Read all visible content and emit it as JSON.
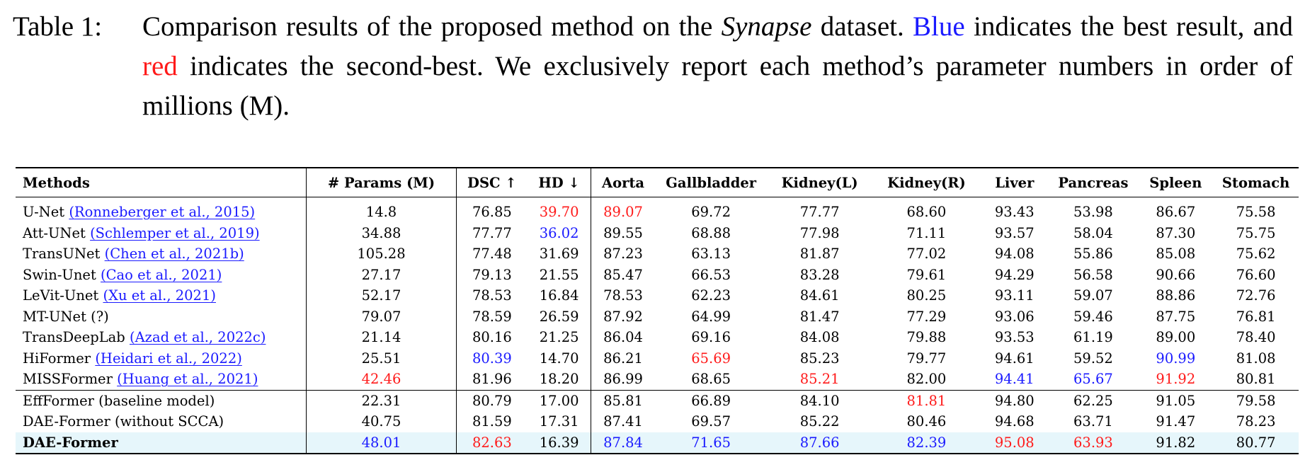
{
  "caption": {
    "label": "Table 1:",
    "part1": "Comparison results of the proposed method on the ",
    "dataset": "Synapse",
    "part2": " dataset. ",
    "blue_word": "Blue",
    "part3": " indicates the best result, and ",
    "red_word": "red",
    "part4": " indicates the second-best. We exclusively report each method’s parameter numbers in order of millions (M)."
  },
  "table": {
    "headers": [
      "Methods",
      "# Params (M)",
      "DSC ↑",
      "HD ↓",
      "Aorta",
      "Gallbladder",
      "Kidney(L)",
      "Kidney(R)",
      "Liver",
      "Pancreas",
      "Spleen",
      "Stomach"
    ],
    "rows": [
      {
        "name": "U-Net",
        "cite": "(Ronneberger et al., 2015)",
        "values": [
          "14.8",
          "76.85",
          "39.70",
          "89.07",
          "69.72",
          "77.77",
          "68.60",
          "93.43",
          "53.98",
          "86.67",
          "75.58"
        ]
      },
      {
        "name": "Att-UNet",
        "cite": "(Schlemper et al., 2019)",
        "values": [
          "34.88",
          "77.77",
          "36.02",
          "89.55",
          "68.88",
          "77.98",
          "71.11",
          "93.57",
          "58.04",
          "87.30",
          "75.75"
        ]
      },
      {
        "name": "TransUNet",
        "cite": "(Chen et al., 2021b)",
        "values": [
          "105.28",
          "77.48",
          "31.69",
          "87.23",
          "63.13",
          "81.87",
          "77.02",
          "94.08",
          "55.86",
          "85.08",
          "75.62"
        ]
      },
      {
        "name": "Swin-Unet",
        "cite": "(Cao et al., 2021)",
        "values": [
          "27.17",
          "79.13",
          "21.55",
          "85.47",
          "66.53",
          "83.28",
          "79.61",
          "94.29",
          "56.58",
          "90.66",
          "76.60"
        ]
      },
      {
        "name": "LeVit-Unet",
        "cite": "(Xu et al., 2021)",
        "values": [
          "52.17",
          "78.53",
          "16.84",
          "78.53",
          "62.23",
          "84.61",
          "80.25",
          "93.11",
          "59.07",
          "88.86",
          "72.76"
        ]
      },
      {
        "name": "MT-UNet (?)",
        "cite": "",
        "values": [
          "79.07",
          "78.59",
          "26.59",
          "87.92",
          "64.99",
          "81.47",
          "77.29",
          "93.06",
          "59.46",
          "87.75",
          "76.81"
        ]
      },
      {
        "name": "TransDeepLab",
        "cite": "(Azad et al., 2022c)",
        "values": [
          "21.14",
          "80.16",
          "21.25",
          "86.04",
          "69.16",
          "84.08",
          "79.88",
          "93.53",
          "61.19",
          "89.00",
          "78.40"
        ]
      },
      {
        "name": "HiFormer",
        "cite": "(Heidari et al., 2022)",
        "values": [
          "25.51",
          "80.39",
          "14.70",
          "86.21",
          "65.69",
          "85.23",
          "79.77",
          "94.61",
          "59.52",
          "90.99",
          "81.08"
        ]
      },
      {
        "name": "MISSFormer",
        "cite": "(Huang et al., 2021)",
        "values": [
          "42.46",
          "81.96",
          "18.20",
          "86.99",
          "68.65",
          "85.21",
          "82.00",
          "94.41",
          "65.67",
          "91.92",
          "80.81"
        ]
      },
      {
        "name": "EffFormer (baseline model)",
        "cite": "",
        "values": [
          "22.31",
          "80.79",
          "17.00",
          "85.81",
          "66.89",
          "84.10",
          "81.81",
          "94.80",
          "62.25",
          "91.05",
          "79.58"
        ]
      },
      {
        "name": "DAE-Former (without SCCA)",
        "cite": "",
        "values": [
          "40.75",
          "81.59",
          "17.31",
          "87.41",
          "69.57",
          "85.22",
          "80.46",
          "94.68",
          "63.71",
          "91.47",
          "78.23"
        ]
      },
      {
        "name": "DAE-Former",
        "cite": "",
        "values": [
          "48.01",
          "82.63",
          "16.39",
          "87.84",
          "71.65",
          "87.66",
          "82.39",
          "95.08",
          "63.93",
          "91.82",
          "80.77"
        ]
      }
    ],
    "highlights": {
      "blue": [
        [
          1,
          3
        ],
        [
          7,
          2
        ],
        [
          7,
          10
        ],
        [
          8,
          8
        ],
        [
          8,
          9
        ],
        [
          11,
          1
        ],
        [
          11,
          4
        ],
        [
          11,
          5
        ],
        [
          11,
          6
        ],
        [
          11,
          7
        ]
      ],
      "red": [
        [
          0,
          3
        ],
        [
          0,
          4
        ],
        [
          7,
          5
        ],
        [
          8,
          1
        ],
        [
          8,
          6
        ],
        [
          8,
          10
        ],
        [
          9,
          7
        ],
        [
          11,
          2
        ],
        [
          11,
          8
        ],
        [
          11,
          9
        ]
      ]
    },
    "colors": {
      "blue": "#1a1aff",
      "red": "#ff1a1a",
      "highlight_row_bg": "#e6f6fb"
    }
  }
}
